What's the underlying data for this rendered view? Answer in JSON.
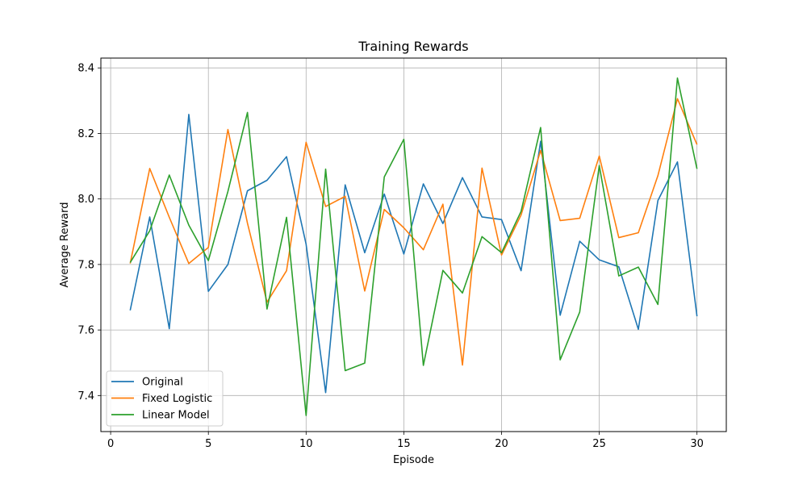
{
  "chart_data": {
    "type": "line",
    "title": "Training Rewards",
    "xlabel": "Episode",
    "ylabel": "Average Reward",
    "xlim": [
      -0.5,
      31.5
    ],
    "ylim": [
      7.29,
      8.43
    ],
    "xticks": [
      0,
      5,
      10,
      15,
      20,
      25,
      30
    ],
    "xtick_labels": [
      "0",
      "5",
      "10",
      "15",
      "20",
      "25",
      "30"
    ],
    "yticks": [
      7.4,
      7.6,
      7.8,
      8.0,
      8.2,
      8.4
    ],
    "ytick_labels": [
      "7.4",
      "7.6",
      "7.8",
      "8.0",
      "8.2",
      "8.4"
    ],
    "grid": true,
    "legend_position": "lower-left",
    "x": [
      1,
      2,
      3,
      4,
      5,
      6,
      7,
      8,
      9,
      10,
      11,
      12,
      13,
      14,
      15,
      16,
      17,
      18,
      19,
      20,
      21,
      22,
      23,
      24,
      25,
      26,
      27,
      28,
      29,
      30
    ],
    "series": [
      {
        "name": "Original",
        "color": "#1f77b4",
        "values": [
          7.66,
          7.945,
          7.604,
          8.258,
          7.718,
          7.8,
          8.025,
          8.057,
          8.129,
          7.862,
          7.409,
          8.043,
          7.836,
          8.015,
          7.832,
          8.046,
          7.925,
          8.065,
          7.945,
          7.937,
          7.781,
          8.176,
          7.645,
          7.871,
          7.814,
          7.793,
          7.602,
          7.995,
          8.113,
          7.642
        ]
      },
      {
        "name": "Fixed Logistic",
        "color": "#ff7f0e",
        "values": [
          7.803,
          8.093,
          7.944,
          7.803,
          7.852,
          8.212,
          7.926,
          7.685,
          7.781,
          8.173,
          7.977,
          8.008,
          7.719,
          7.968,
          7.912,
          7.845,
          7.984,
          7.493,
          8.094,
          7.829,
          7.951,
          8.148,
          7.934,
          7.941,
          8.131,
          7.882,
          7.897,
          8.071,
          8.306,
          8.166
        ]
      },
      {
        "name": "Linear Model",
        "color": "#2ca02c",
        "values": [
          7.806,
          7.903,
          8.073,
          7.92,
          7.812,
          8.023,
          8.264,
          7.664,
          7.944,
          7.339,
          8.091,
          7.476,
          7.499,
          8.067,
          8.182,
          7.492,
          7.782,
          7.713,
          7.885,
          7.836,
          7.962,
          8.218,
          7.509,
          7.655,
          8.102,
          7.765,
          7.792,
          7.678,
          8.369,
          8.092
        ]
      }
    ]
  }
}
